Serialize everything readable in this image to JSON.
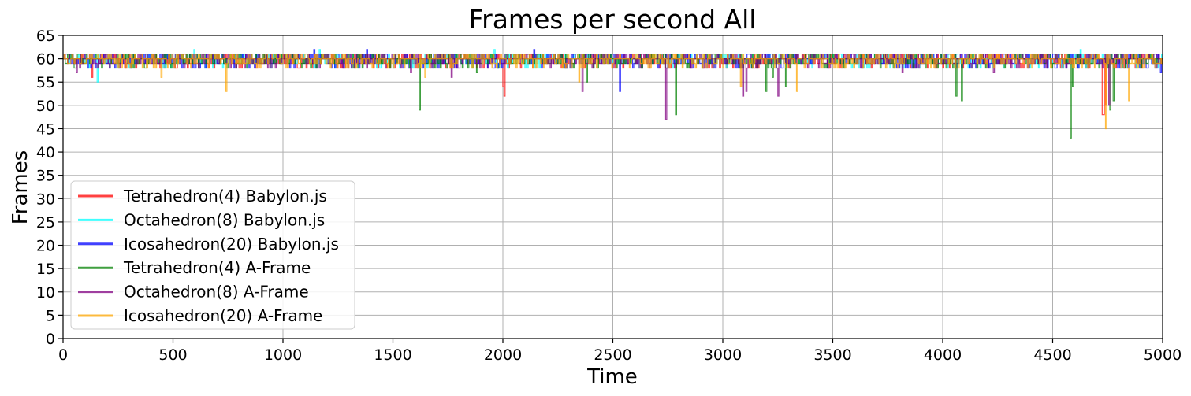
{
  "chart_data": {
    "type": "line",
    "title": "Frames per second All",
    "xlabel": "Time",
    "ylabel": "Frames",
    "xlim": [
      0,
      5000
    ],
    "ylim": [
      0,
      65
    ],
    "xticks": [
      0,
      500,
      1000,
      1500,
      2000,
      2500,
      3000,
      3500,
      4000,
      4500,
      5000
    ],
    "yticks": [
      0,
      5,
      10,
      15,
      20,
      25,
      30,
      35,
      40,
      45,
      50,
      55,
      60,
      65
    ],
    "grid": true,
    "legend_position": "lower-left",
    "series": [
      {
        "name": "Tetrahedron(4) Babylon.js",
        "color": "#ff0000",
        "baseline": 60,
        "x": [
          0,
          130,
          1995,
          2000,
          2005,
          3480,
          4725,
          4730,
          4740,
          5000
        ],
        "y": [
          60,
          56,
          59,
          54,
          52,
          58,
          48,
          48,
          50,
          60
        ]
      },
      {
        "name": "Octahedron(8) Babylon.js",
        "color": "#00ffff",
        "baseline": 60,
        "x": [
          0,
          155,
          595,
          1165,
          1960,
          3015,
          4625,
          5000
        ],
        "y": [
          60,
          55,
          62,
          62,
          62,
          58,
          62,
          60
        ]
      },
      {
        "name": "Icosahedron(20) Babylon.js",
        "color": "#0000ff",
        "baseline": 60,
        "x": [
          0,
          50,
          1140,
          1380,
          2140,
          2530,
          4990,
          5000
        ],
        "y": [
          60,
          59,
          62,
          62,
          62,
          53,
          57,
          60
        ]
      },
      {
        "name": "Tetrahedron(4) A-Frame",
        "color": "#008000",
        "baseline": 60,
        "x": [
          0,
          1620,
          1880,
          2380,
          2785,
          3195,
          3225,
          3285,
          4060,
          4085,
          4580,
          4590,
          4760,
          4775,
          5000
        ],
        "y": [
          60,
          49,
          57,
          55,
          48,
          53,
          56,
          54,
          52,
          51,
          43,
          54,
          49,
          51,
          60
        ]
      },
      {
        "name": "Octahedron(8) A-Frame",
        "color": "#800080",
        "baseline": 60,
        "x": [
          0,
          60,
          1580,
          1765,
          2360,
          2740,
          3090,
          3105,
          3250,
          3815,
          4230,
          4755,
          5000
        ],
        "y": [
          60,
          57,
          57,
          56,
          53,
          47,
          52,
          53,
          52,
          57,
          57,
          50,
          60
        ]
      },
      {
        "name": "Icosahedron(20) A-Frame",
        "color": "#ffa500",
        "baseline": 60,
        "x": [
          0,
          445,
          740,
          1645,
          2345,
          3080,
          3335,
          4740,
          4845,
          5000
        ],
        "y": [
          60,
          56,
          53,
          56,
          55,
          54,
          53,
          45,
          51,
          60
        ]
      }
    ]
  }
}
